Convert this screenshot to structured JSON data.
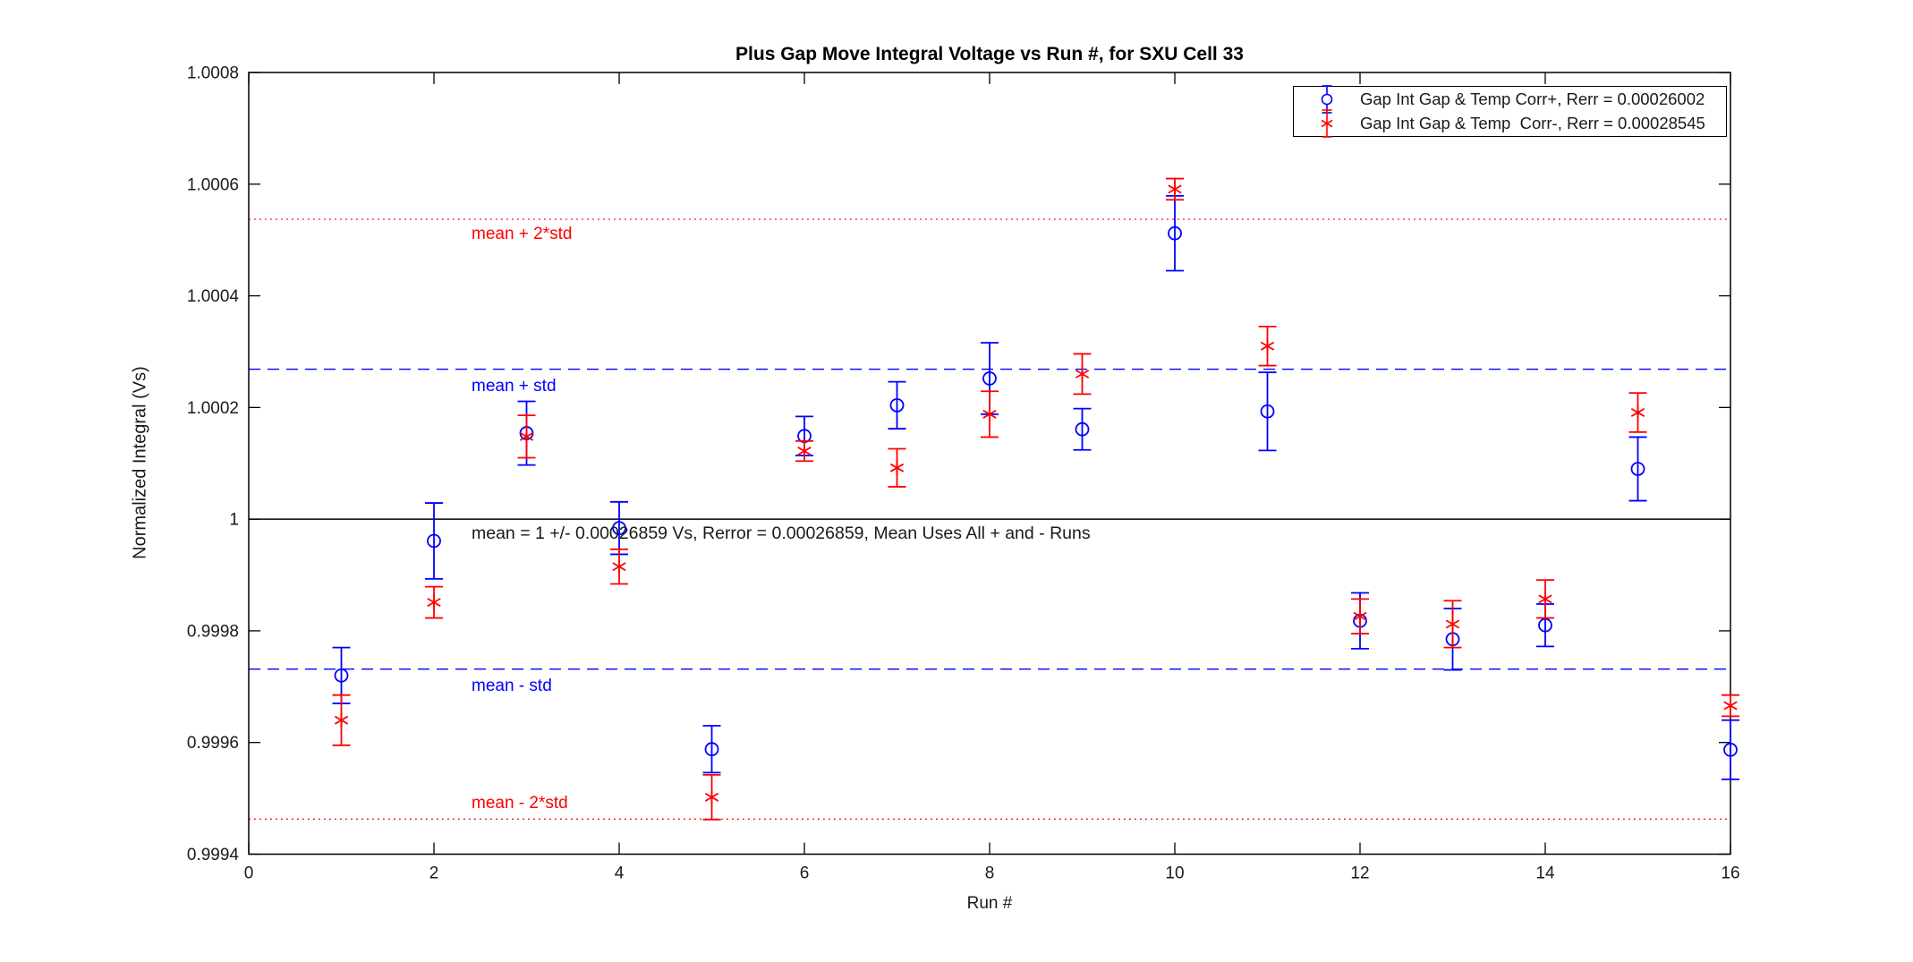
{
  "chart_data": {
    "type": "scatter",
    "title": "Plus Gap Move Integral Voltage vs Run #, for SXU Cell 33",
    "xlabel": "Run #",
    "ylabel": "Normalized Integral (Vs)",
    "xlim": [
      0,
      16
    ],
    "ylim": [
      0.9994,
      1.0008
    ],
    "xticks": [
      0,
      2,
      4,
      6,
      8,
      10,
      12,
      14,
      16
    ],
    "yticks": [
      {
        "value": 0.9994,
        "label": "0.9994"
      },
      {
        "value": 0.9996,
        "label": "0.9996"
      },
      {
        "value": 0.9998,
        "label": "0.9998"
      },
      {
        "value": 1.0,
        "label": "1"
      },
      {
        "value": 1.0002,
        "label": "1.0002"
      },
      {
        "value": 1.0004,
        "label": "1.0004"
      },
      {
        "value": 1.0006,
        "label": "1.0006"
      },
      {
        "value": 1.0008,
        "label": "1.0008"
      }
    ],
    "grid": false,
    "legend_position": "top-right",
    "x": [
      1,
      2,
      3,
      4,
      5,
      6,
      7,
      8,
      9,
      10,
      11,
      12,
      13,
      14,
      15,
      16
    ],
    "series": [
      {
        "name": "Gap Int Gap & Temp Corr+, Rerr = 0.00026002",
        "marker": "circle-errorbar",
        "color": "#0000ff",
        "values": [
          0.99972,
          0.999961,
          1.000154,
          0.999984,
          0.999588,
          1.000149,
          1.000204,
          1.000252,
          1.000161,
          1.000512,
          1.000193,
          0.999818,
          0.999785,
          0.99981,
          1.00009,
          0.999587
        ],
        "errors": [
          5e-05,
          6.8e-05,
          5.7e-05,
          4.7e-05,
          4.2e-05,
          3.5e-05,
          4.2e-05,
          6.4e-05,
          3.7e-05,
          6.7e-05,
          7e-05,
          5e-05,
          5.5e-05,
          3.8e-05,
          5.7e-05,
          5.3e-05
        ]
      },
      {
        "name": "Gap Int Gap & Temp  Corr-, Rerr = 0.00028545",
        "marker": "asterisk-errorbar",
        "color": "#ff0000",
        "values": [
          0.99964,
          0.999851,
          1.000148,
          0.999915,
          0.999502,
          1.000122,
          1.000092,
          1.000188,
          1.00026,
          1.000591,
          1.00031,
          0.999826,
          0.999812,
          0.999857,
          1.000191,
          0.999666
        ],
        "errors": [
          4.5e-05,
          2.8e-05,
          3.8e-05,
          3.1e-05,
          4e-05,
          1.8e-05,
          3.4e-05,
          4.1e-05,
          3.6e-05,
          1.9e-05,
          3.5e-05,
          3.1e-05,
          4.2e-05,
          3.4e-05,
          3.5e-05,
          1.9e-05
        ]
      }
    ],
    "reference_lines": [
      {
        "name": "mean-plus-2std",
        "label": "mean + 2*std",
        "value": 1.00053718,
        "color": "#ff0000",
        "style": "dotted"
      },
      {
        "name": "mean-plus-std",
        "label": "mean + std",
        "value": 1.00026859,
        "color": "#0000ff",
        "style": "dashed"
      },
      {
        "name": "mean",
        "label": "",
        "value": 1.0,
        "color": "#000000",
        "style": "solid"
      },
      {
        "name": "mean-minus-std",
        "label": "mean - std",
        "value": 0.99973141,
        "color": "#0000ff",
        "style": "dashed"
      },
      {
        "name": "mean-minus-2std",
        "label": "mean - 2*std",
        "value": 0.99946282,
        "color": "#ff0000",
        "style": "dotted"
      }
    ],
    "mean_annotation": "mean = 1 +/- 0.00026859 Vs, Rerror = 0.00026859, Mean Uses All + and - Runs",
    "stats": {
      "mean": 1,
      "std": 0.00026859,
      "rerror": 0.00026859
    }
  },
  "legend": {
    "icons": [
      "circle-errorbar-icon",
      "asterisk-errorbar-icon"
    ]
  }
}
